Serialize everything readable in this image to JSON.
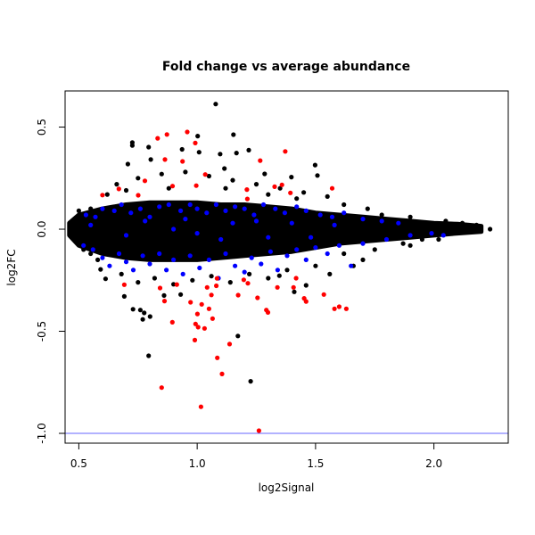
{
  "chart_data": {
    "type": "scatter",
    "title": "Fold change vs average abundance",
    "xlabel": "log2Signal",
    "ylabel": "log2FC",
    "xlim": [
      0.442,
      2.314
    ],
    "ylim": [
      -1.048,
      0.677
    ],
    "xticks": [
      {
        "value": 0.5,
        "label": "0.5"
      },
      {
        "value": 1.0,
        "label": "1.0"
      },
      {
        "value": 1.5,
        "label": "1.5"
      },
      {
        "value": 2.0,
        "label": "2.0"
      }
    ],
    "yticks": [
      {
        "value": 0.5,
        "label": "0.5"
      },
      {
        "value": 0.0,
        "label": "0.0"
      },
      {
        "value": -0.5,
        "label": "-0.5"
      },
      {
        "value": -1.0,
        "label": "-1.0"
      }
    ],
    "grid": false,
    "reference_line": {
      "y": -1.0,
      "color": "#6666ff"
    },
    "colors": {
      "black": "#000000",
      "red": "#ff0000",
      "blue": "#0000ff"
    },
    "dense_core": [
      [
        0.46,
        -0.03,
        0.03
      ],
      [
        0.5,
        -0.08,
        0.07
      ],
      [
        0.6,
        -0.12,
        0.1
      ],
      [
        0.7,
        -0.14,
        0.12
      ],
      [
        0.8,
        -0.15,
        0.13
      ],
      [
        0.9,
        -0.15,
        0.13
      ],
      [
        1.0,
        -0.15,
        0.13
      ],
      [
        1.1,
        -0.14,
        0.12
      ],
      [
        1.2,
        -0.13,
        0.12
      ],
      [
        1.3,
        -0.12,
        0.11
      ],
      [
        1.4,
        -0.11,
        0.1
      ],
      [
        1.5,
        -0.09,
        0.08
      ],
      [
        1.6,
        -0.07,
        0.07
      ],
      [
        1.7,
        -0.06,
        0.06
      ],
      [
        1.8,
        -0.05,
        0.05
      ],
      [
        1.9,
        -0.04,
        0.04
      ],
      [
        2.0,
        -0.03,
        0.03
      ],
      [
        2.1,
        -0.02,
        0.025
      ],
      [
        2.2,
        -0.012,
        0.015
      ]
    ],
    "series": [
      {
        "color": "black",
        "points": [
          [
            1.078,
            0.613
          ],
          [
            0.726,
            0.424
          ],
          [
            0.726,
            0.41
          ],
          [
            1.002,
            0.456
          ],
          [
            1.153,
            0.463
          ],
          [
            1.166,
            0.373
          ],
          [
            1.218,
            0.387
          ],
          [
            1.097,
            0.368
          ],
          [
            0.795,
            0.402
          ],
          [
            0.936,
            0.391
          ],
          [
            1.008,
            0.377
          ],
          [
            0.707,
            0.319
          ],
          [
            1.115,
            0.297
          ],
          [
            1.498,
            0.314
          ],
          [
            1.508,
            0.263
          ],
          [
            1.285,
            0.271
          ],
          [
            1.398,
            0.255
          ],
          [
            0.804,
            0.341
          ],
          [
            0.66,
            0.22
          ],
          [
            0.75,
            0.25
          ],
          [
            0.85,
            0.27
          ],
          [
            0.95,
            0.28
          ],
          [
            1.05,
            0.26
          ],
          [
            1.15,
            0.24
          ],
          [
            1.25,
            0.22
          ],
          [
            1.35,
            0.2
          ],
          [
            1.45,
            0.18
          ],
          [
            0.62,
            0.17
          ],
          [
            0.7,
            0.19
          ],
          [
            0.88,
            0.2
          ],
          [
            1.12,
            0.2
          ],
          [
            1.3,
            0.17
          ],
          [
            1.42,
            0.15
          ],
          [
            1.55,
            0.16
          ],
          [
            1.62,
            0.12
          ],
          [
            1.72,
            0.1
          ],
          [
            1.78,
            0.07
          ],
          [
            1.9,
            0.06
          ],
          [
            2.05,
            0.04
          ],
          [
            2.12,
            0.03
          ],
          [
            2.18,
            0.02
          ],
          [
            2.237,
            0.0
          ],
          [
            0.613,
            -0.243
          ],
          [
            0.592,
            -0.197
          ],
          [
            0.692,
            -0.329
          ],
          [
            0.729,
            -0.392
          ],
          [
            0.76,
            -0.396
          ],
          [
            0.77,
            -0.442
          ],
          [
            0.776,
            -0.41
          ],
          [
            0.801,
            -0.428
          ],
          [
            0.86,
            -0.325
          ],
          [
            0.93,
            -0.32
          ],
          [
            1.46,
            -0.275
          ],
          [
            1.41,
            -0.307
          ],
          [
            1.347,
            -0.228
          ],
          [
            1.172,
            -0.523
          ],
          [
            0.795,
            -0.62
          ],
          [
            1.226,
            -0.745
          ],
          [
            0.68,
            -0.22
          ],
          [
            0.75,
            -0.26
          ],
          [
            0.82,
            -0.24
          ],
          [
            0.9,
            -0.27
          ],
          [
            0.98,
            -0.25
          ],
          [
            1.06,
            -0.23
          ],
          [
            1.14,
            -0.26
          ],
          [
            1.22,
            -0.22
          ],
          [
            1.3,
            -0.24
          ],
          [
            1.38,
            -0.2
          ],
          [
            1.5,
            -0.18
          ],
          [
            1.56,
            -0.22
          ],
          [
            1.62,
            -0.12
          ],
          [
            1.66,
            -0.18
          ],
          [
            1.7,
            -0.15
          ],
          [
            1.75,
            -0.1
          ],
          [
            1.87,
            -0.07
          ],
          [
            1.95,
            -0.05
          ],
          [
            0.58,
            -0.15
          ],
          [
            0.55,
            -0.12
          ],
          [
            0.52,
            -0.1
          ],
          [
            0.5,
            0.09
          ],
          [
            0.55,
            0.1
          ],
          [
            1.9,
            -0.08
          ],
          [
            2.02,
            -0.05
          ]
        ]
      },
      {
        "color": "blue",
        "points": [
          [
            0.53,
            0.07
          ],
          [
            0.57,
            0.06
          ],
          [
            0.6,
            0.1
          ],
          [
            0.65,
            0.09
          ],
          [
            0.68,
            0.12
          ],
          [
            0.72,
            0.08
          ],
          [
            0.76,
            0.1
          ],
          [
            0.8,
            0.06
          ],
          [
            0.84,
            0.11
          ],
          [
            0.88,
            0.12
          ],
          [
            0.93,
            0.09
          ],
          [
            0.97,
            0.12
          ],
          [
            1.0,
            0.1
          ],
          [
            1.04,
            0.08
          ],
          [
            1.08,
            0.12
          ],
          [
            1.12,
            0.09
          ],
          [
            1.16,
            0.11
          ],
          [
            1.2,
            0.1
          ],
          [
            1.24,
            0.07
          ],
          [
            1.28,
            0.12
          ],
          [
            1.33,
            0.1
          ],
          [
            1.37,
            0.08
          ],
          [
            1.42,
            0.11
          ],
          [
            1.46,
            0.09
          ],
          [
            1.52,
            0.07
          ],
          [
            1.57,
            0.06
          ],
          [
            1.62,
            0.08
          ],
          [
            1.7,
            0.05
          ],
          [
            1.78,
            0.04
          ],
          [
            1.85,
            0.03
          ],
          [
            0.52,
            -0.08
          ],
          [
            0.56,
            -0.1
          ],
          [
            0.6,
            -0.14
          ],
          [
            0.63,
            -0.18
          ],
          [
            0.67,
            -0.12
          ],
          [
            0.7,
            -0.16
          ],
          [
            0.73,
            -0.2
          ],
          [
            0.77,
            -0.13
          ],
          [
            0.8,
            -0.17
          ],
          [
            0.84,
            -0.12
          ],
          [
            0.87,
            -0.2
          ],
          [
            0.9,
            -0.15
          ],
          [
            0.94,
            -0.22
          ],
          [
            0.97,
            -0.13
          ],
          [
            1.01,
            -0.19
          ],
          [
            1.05,
            -0.15
          ],
          [
            1.09,
            -0.24
          ],
          [
            1.12,
            -0.12
          ],
          [
            1.16,
            -0.18
          ],
          [
            1.2,
            -0.21
          ],
          [
            1.23,
            -0.14
          ],
          [
            1.27,
            -0.17
          ],
          [
            1.31,
            -0.11
          ],
          [
            1.34,
            -0.2
          ],
          [
            1.38,
            -0.13
          ],
          [
            1.42,
            -0.1
          ],
          [
            1.46,
            -0.15
          ],
          [
            1.5,
            -0.09
          ],
          [
            1.55,
            -0.12
          ],
          [
            1.6,
            -0.08
          ],
          [
            1.65,
            -0.18
          ],
          [
            1.7,
            -0.07
          ],
          [
            1.8,
            -0.05
          ],
          [
            1.9,
            -0.03
          ],
          [
            1.99,
            -0.02
          ],
          [
            2.04,
            -0.03
          ],
          [
            0.55,
            0.02
          ],
          [
            0.7,
            -0.03
          ],
          [
            0.78,
            0.04
          ],
          [
            0.95,
            0.05
          ],
          [
            1.1,
            -0.05
          ],
          [
            1.25,
            0.04
          ],
          [
            1.3,
            -0.04
          ],
          [
            1.4,
            0.03
          ],
          [
            1.48,
            -0.04
          ],
          [
            1.58,
            0.02
          ],
          [
            0.9,
            0.0
          ],
          [
            1.0,
            -0.02
          ],
          [
            1.15,
            0.03
          ]
        ]
      },
      {
        "color": "red",
        "points": [
          [
            0.833,
            0.445
          ],
          [
            0.872,
            0.464
          ],
          [
            0.958,
            0.476
          ],
          [
            0.992,
            0.422
          ],
          [
            0.864,
            0.341
          ],
          [
            0.938,
            0.332
          ],
          [
            1.372,
            0.381
          ],
          [
            1.266,
            0.336
          ],
          [
            1.034,
            0.268
          ],
          [
            0.779,
            0.237
          ],
          [
            0.6,
            0.167
          ],
          [
            0.669,
            0.197
          ],
          [
            0.996,
            0.213
          ],
          [
            1.327,
            0.208
          ],
          [
            1.358,
            0.217
          ],
          [
            1.21,
            0.194
          ],
          [
            0.751,
            0.166
          ],
          [
            0.896,
            0.211
          ],
          [
            1.394,
            0.178
          ],
          [
            1.212,
            0.148
          ],
          [
            1.57,
            0.2
          ],
          [
            0.692,
            -0.272
          ],
          [
            0.843,
            -0.288
          ],
          [
            0.914,
            -0.271
          ],
          [
            0.862,
            -0.352
          ],
          [
            0.972,
            -0.358
          ],
          [
            1.019,
            -0.368
          ],
          [
            1.042,
            -0.285
          ],
          [
            1.084,
            -0.241
          ],
          [
            1.081,
            -0.277
          ],
          [
            1.06,
            -0.322
          ],
          [
            1.001,
            -0.415
          ],
          [
            1.05,
            -0.39
          ],
          [
            1.065,
            -0.438
          ],
          [
            0.895,
            -0.456
          ],
          [
            0.993,
            -0.464
          ],
          [
            1.004,
            -0.48
          ],
          [
            1.031,
            -0.486
          ],
          [
            0.99,
            -0.543
          ],
          [
            1.137,
            -0.563
          ],
          [
            1.173,
            -0.323
          ],
          [
            1.255,
            -0.336
          ],
          [
            1.292,
            -0.396
          ],
          [
            1.299,
            -0.408
          ],
          [
            1.339,
            -0.285
          ],
          [
            1.214,
            -0.265
          ],
          [
            1.197,
            -0.248
          ],
          [
            1.407,
            -0.285
          ],
          [
            1.418,
            -0.24
          ],
          [
            1.452,
            -0.339
          ],
          [
            1.46,
            -0.354
          ],
          [
            1.535,
            -0.32
          ],
          [
            1.58,
            -0.39
          ],
          [
            1.6,
            -0.38
          ],
          [
            1.63,
            -0.39
          ],
          [
            1.085,
            -0.63
          ],
          [
            1.105,
            -0.709
          ],
          [
            0.85,
            -0.776
          ],
          [
            1.016,
            -0.87
          ],
          [
            1.261,
            -0.987
          ]
        ]
      }
    ]
  }
}
